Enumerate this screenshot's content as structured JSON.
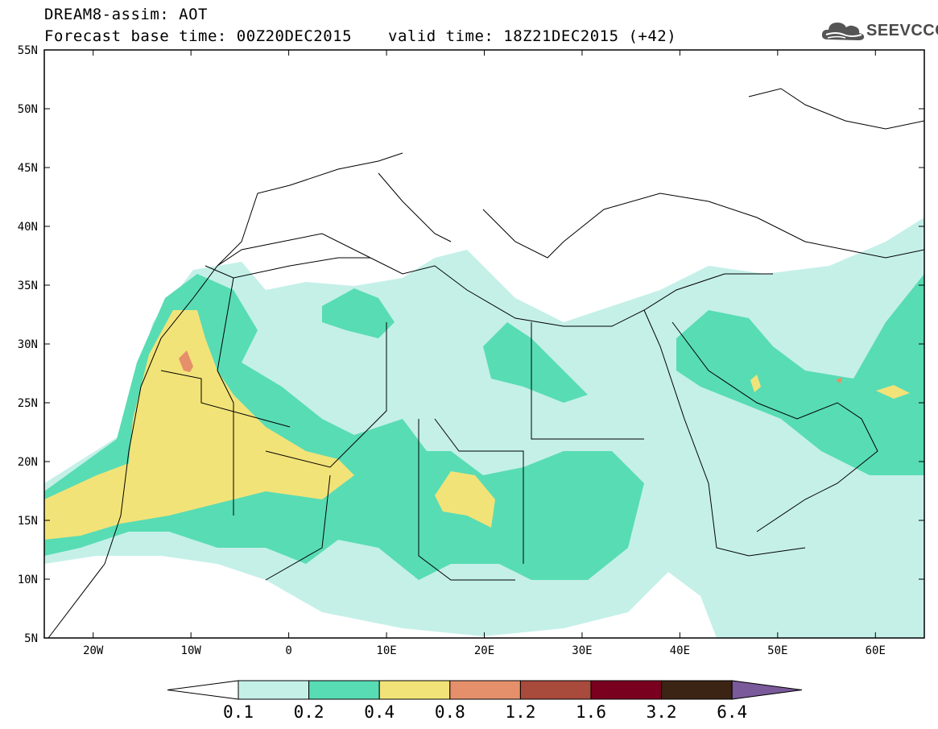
{
  "header": {
    "line1": "DREAM8-assim: AOT",
    "line2": "Forecast base time: 00Z20DEC2015",
    "valid": "valid time: 18Z21DEC2015 (+42)"
  },
  "logo": {
    "text": "SEEVCCC",
    "icon": "cloud-icon"
  },
  "map": {
    "lon_range": [
      -25,
      65
    ],
    "lat_range": [
      5,
      55
    ],
    "lon_ticks": [
      "20W",
      "10W",
      "0",
      "10E",
      "20E",
      "30E",
      "40E",
      "50E",
      "60E"
    ],
    "lat_ticks": [
      "55N",
      "50N",
      "45N",
      "40N",
      "35N",
      "30N",
      "25N",
      "20N",
      "15N",
      "10N",
      "5N"
    ],
    "variable": "AOT"
  },
  "colorbar": {
    "levels": [
      "0.1",
      "0.2",
      "0.4",
      "0.8",
      "1.2",
      "1.6",
      "3.2",
      "6.4"
    ],
    "colors": [
      "#ffffff",
      "#c4f0e8",
      "#58dcb4",
      "#f2e378",
      "#e5906a",
      "#a84a3c",
      "#7a0020",
      "#3c2414",
      "#7a5a9a"
    ]
  }
}
